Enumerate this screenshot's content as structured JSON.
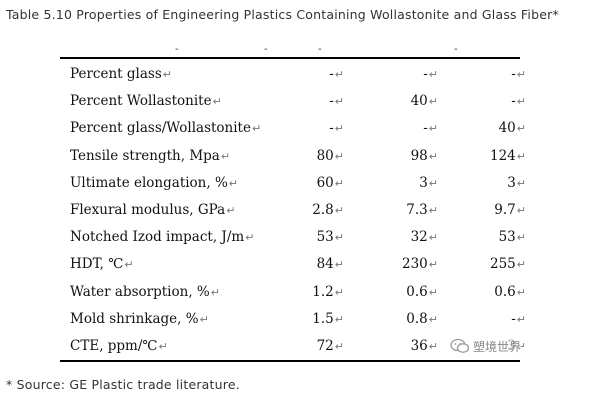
{
  "caption": "Table 5.10  Properties of Engineering Plastics Containing Wollastonite and Glass Fiber*",
  "header_marks": [
    "-",
    "-",
    "-",
    "-"
  ],
  "return_mark": "↵",
  "rows": [
    {
      "label": "Percent glass",
      "v1": "-",
      "v2": "-",
      "v3": "-"
    },
    {
      "label": "Percent Wollastonite",
      "v1": "-",
      "v2": "40",
      "v3": "-"
    },
    {
      "label": "Percent glass/Wollastonite",
      "v1": "-",
      "v2": "-",
      "v3": "40"
    },
    {
      "label": "Tensile strength, Mpa",
      "v1": "80",
      "v2": "98",
      "v3": "124"
    },
    {
      "label": "Ultimate elongation, %",
      "v1": "60",
      "v2": "3",
      "v3": "3"
    },
    {
      "label": "Flexural modulus, GPa",
      "v1": "2.8",
      "v2": "7.3",
      "v3": "9.7"
    },
    {
      "label": "Notched Izod impact, J/m",
      "v1": "53",
      "v2": "32",
      "v3": "53"
    },
    {
      "label": "HDT, ℃",
      "v1": "84",
      "v2": "230",
      "v3": "255"
    },
    {
      "label": "Water absorption, %",
      "v1": "1.2",
      "v2": "0.6",
      "v3": "0.6"
    },
    {
      "label": "Mold shrinkage, %",
      "v1": "1.5",
      "v2": "0.8",
      "v3": "-"
    },
    {
      "label": "CTE, ppm/℃",
      "v1": "72",
      "v2": "36",
      "v3": "3"
    }
  ],
  "footnote": "* Source: GE Plastic trade literature.",
  "watermark": {
    "icon": "wechat-icon",
    "text": "塑境世界"
  }
}
